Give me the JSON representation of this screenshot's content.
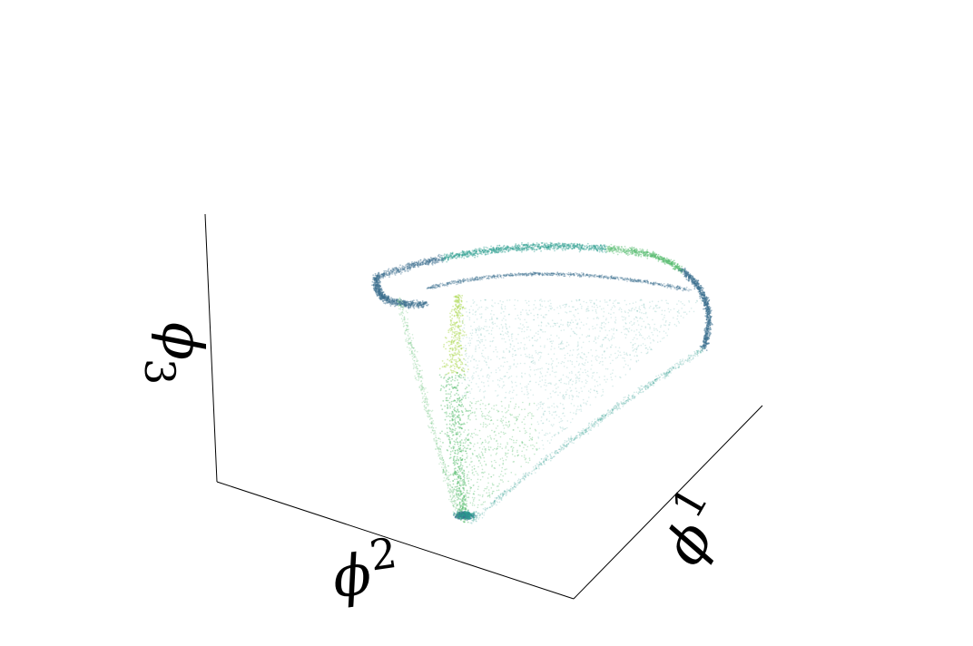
{
  "chart_data": {
    "type": "scatter",
    "projection": "3d",
    "title": "",
    "grid": false,
    "axes": {
      "x": {
        "label": "ϕ1",
        "symbol": "ϕ",
        "index": "1",
        "index_style": "superscript"
      },
      "y": {
        "label": "ϕ2",
        "symbol": "ϕ",
        "index": "2",
        "index_style": "superscript"
      },
      "z": {
        "label": "ϕ3",
        "symbol": "ϕ",
        "index": "3",
        "index_style": "subscript"
      }
    },
    "colormap": "viridis",
    "colors": {
      "dark": "#3b6f8f",
      "teal": "#2a9d8f",
      "green": "#56bc6d",
      "yellow_green": "#a8d64a"
    },
    "point_cloud": {
      "shape": "triangular-loop",
      "description_points_approx": 40000
    },
    "series": [
      {
        "values": []
      }
    ]
  }
}
